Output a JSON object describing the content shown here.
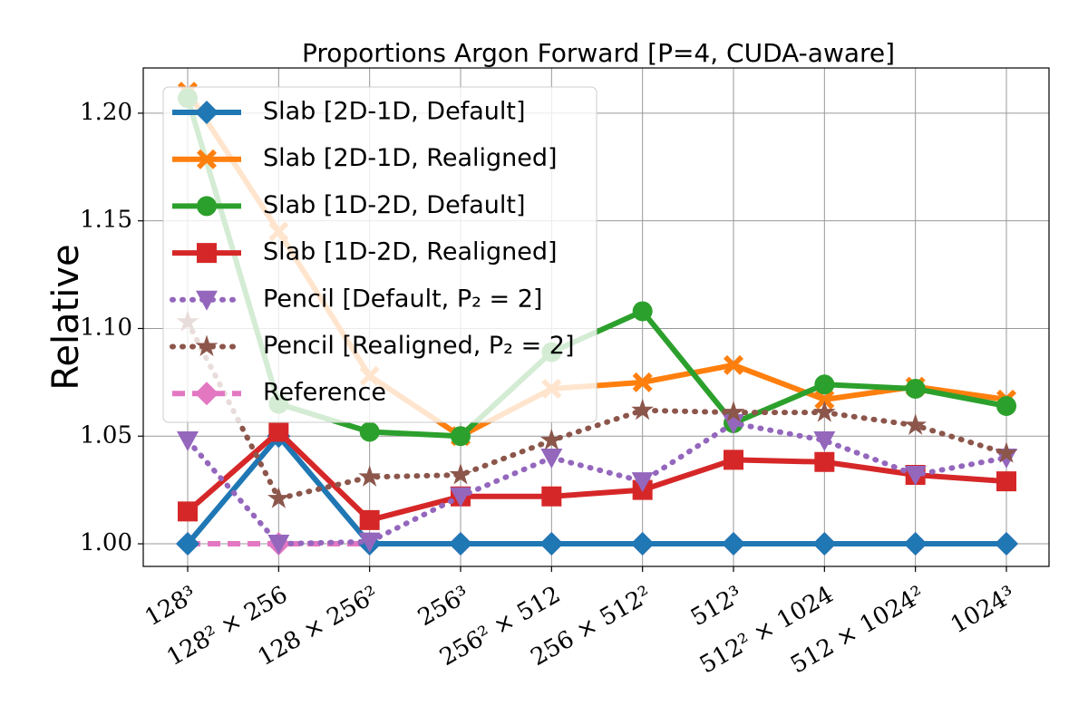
{
  "chart_data": {
    "type": "line",
    "title": "Proportions Argon Forward [P=4, CUDA-aware]",
    "y_label": "Relative",
    "categories": [
      "128³",
      "128² × 256",
      "128 × 256²",
      "256³",
      "256² × 512",
      "256 × 512²",
      "512³",
      "512² × 1024",
      "512 × 1024²",
      "1024³"
    ],
    "ylim": [
      0.9895,
      1.221
    ],
    "yticks": [
      {
        "value": 1.0,
        "label": "1.00"
      },
      1.05,
      {
        "value": 1.1,
        "label": "1.10"
      },
      1.15,
      {
        "value": 1.2,
        "label": "1.20"
      }
    ],
    "grid": true,
    "legend": "upper left",
    "series": [
      {
        "name": "Slab [2D-1D, Default]",
        "color": "#1f77b4",
        "marker": "diamond",
        "linestyle": "solid",
        "values": [
          1.0,
          1.05,
          1.0,
          1.0,
          1.0,
          1.0,
          1.0,
          1.0,
          1.0,
          1.0
        ]
      },
      {
        "name": "Slab [2D-1D, Realigned]",
        "color": "#ff7f0e",
        "marker": "x",
        "linestyle": "solid",
        "values": [
          1.21,
          1.145,
          1.078,
          1.05,
          1.072,
          1.075,
          1.083,
          1.067,
          1.073,
          1.067
        ]
      },
      {
        "name": "Slab [1D-2D, Default]",
        "color": "#2ca02c",
        "marker": "circle",
        "linestyle": "solid",
        "values": [
          1.207,
          1.065,
          1.052,
          1.05,
          1.089,
          1.108,
          1.056,
          1.074,
          1.072,
          1.064
        ]
      },
      {
        "name": "Slab [1D-2D, Realigned]",
        "color": "#d62728",
        "marker": "square",
        "linestyle": "solid",
        "values": [
          1.015,
          1.052,
          1.011,
          1.022,
          1.022,
          1.025,
          1.039,
          1.038,
          1.032,
          1.029
        ]
      },
      {
        "name": "Pencil [Default, P₂ = 2]",
        "color": "#9467bd",
        "marker": "triangle-down",
        "linestyle": "dotted",
        "values": [
          1.048,
          1.0,
          1.001,
          1.022,
          1.04,
          1.029,
          1.056,
          1.048,
          1.032,
          1.04
        ]
      },
      {
        "name": "Pencil [Realigned, P₂ = 2]",
        "color": "#8c564b",
        "marker": "star",
        "linestyle": "dotted",
        "values": [
          1.103,
          1.021,
          1.031,
          1.032,
          1.048,
          1.062,
          1.061,
          1.061,
          1.055,
          1.042
        ]
      },
      {
        "name": "Reference",
        "color": "#e377c2",
        "marker": "diamond",
        "linestyle": "dashed",
        "values": [
          1.0,
          1.0,
          1.0,
          1.0,
          1.0,
          1.0,
          1.0,
          1.0,
          1.0,
          1.0
        ]
      }
    ]
  }
}
